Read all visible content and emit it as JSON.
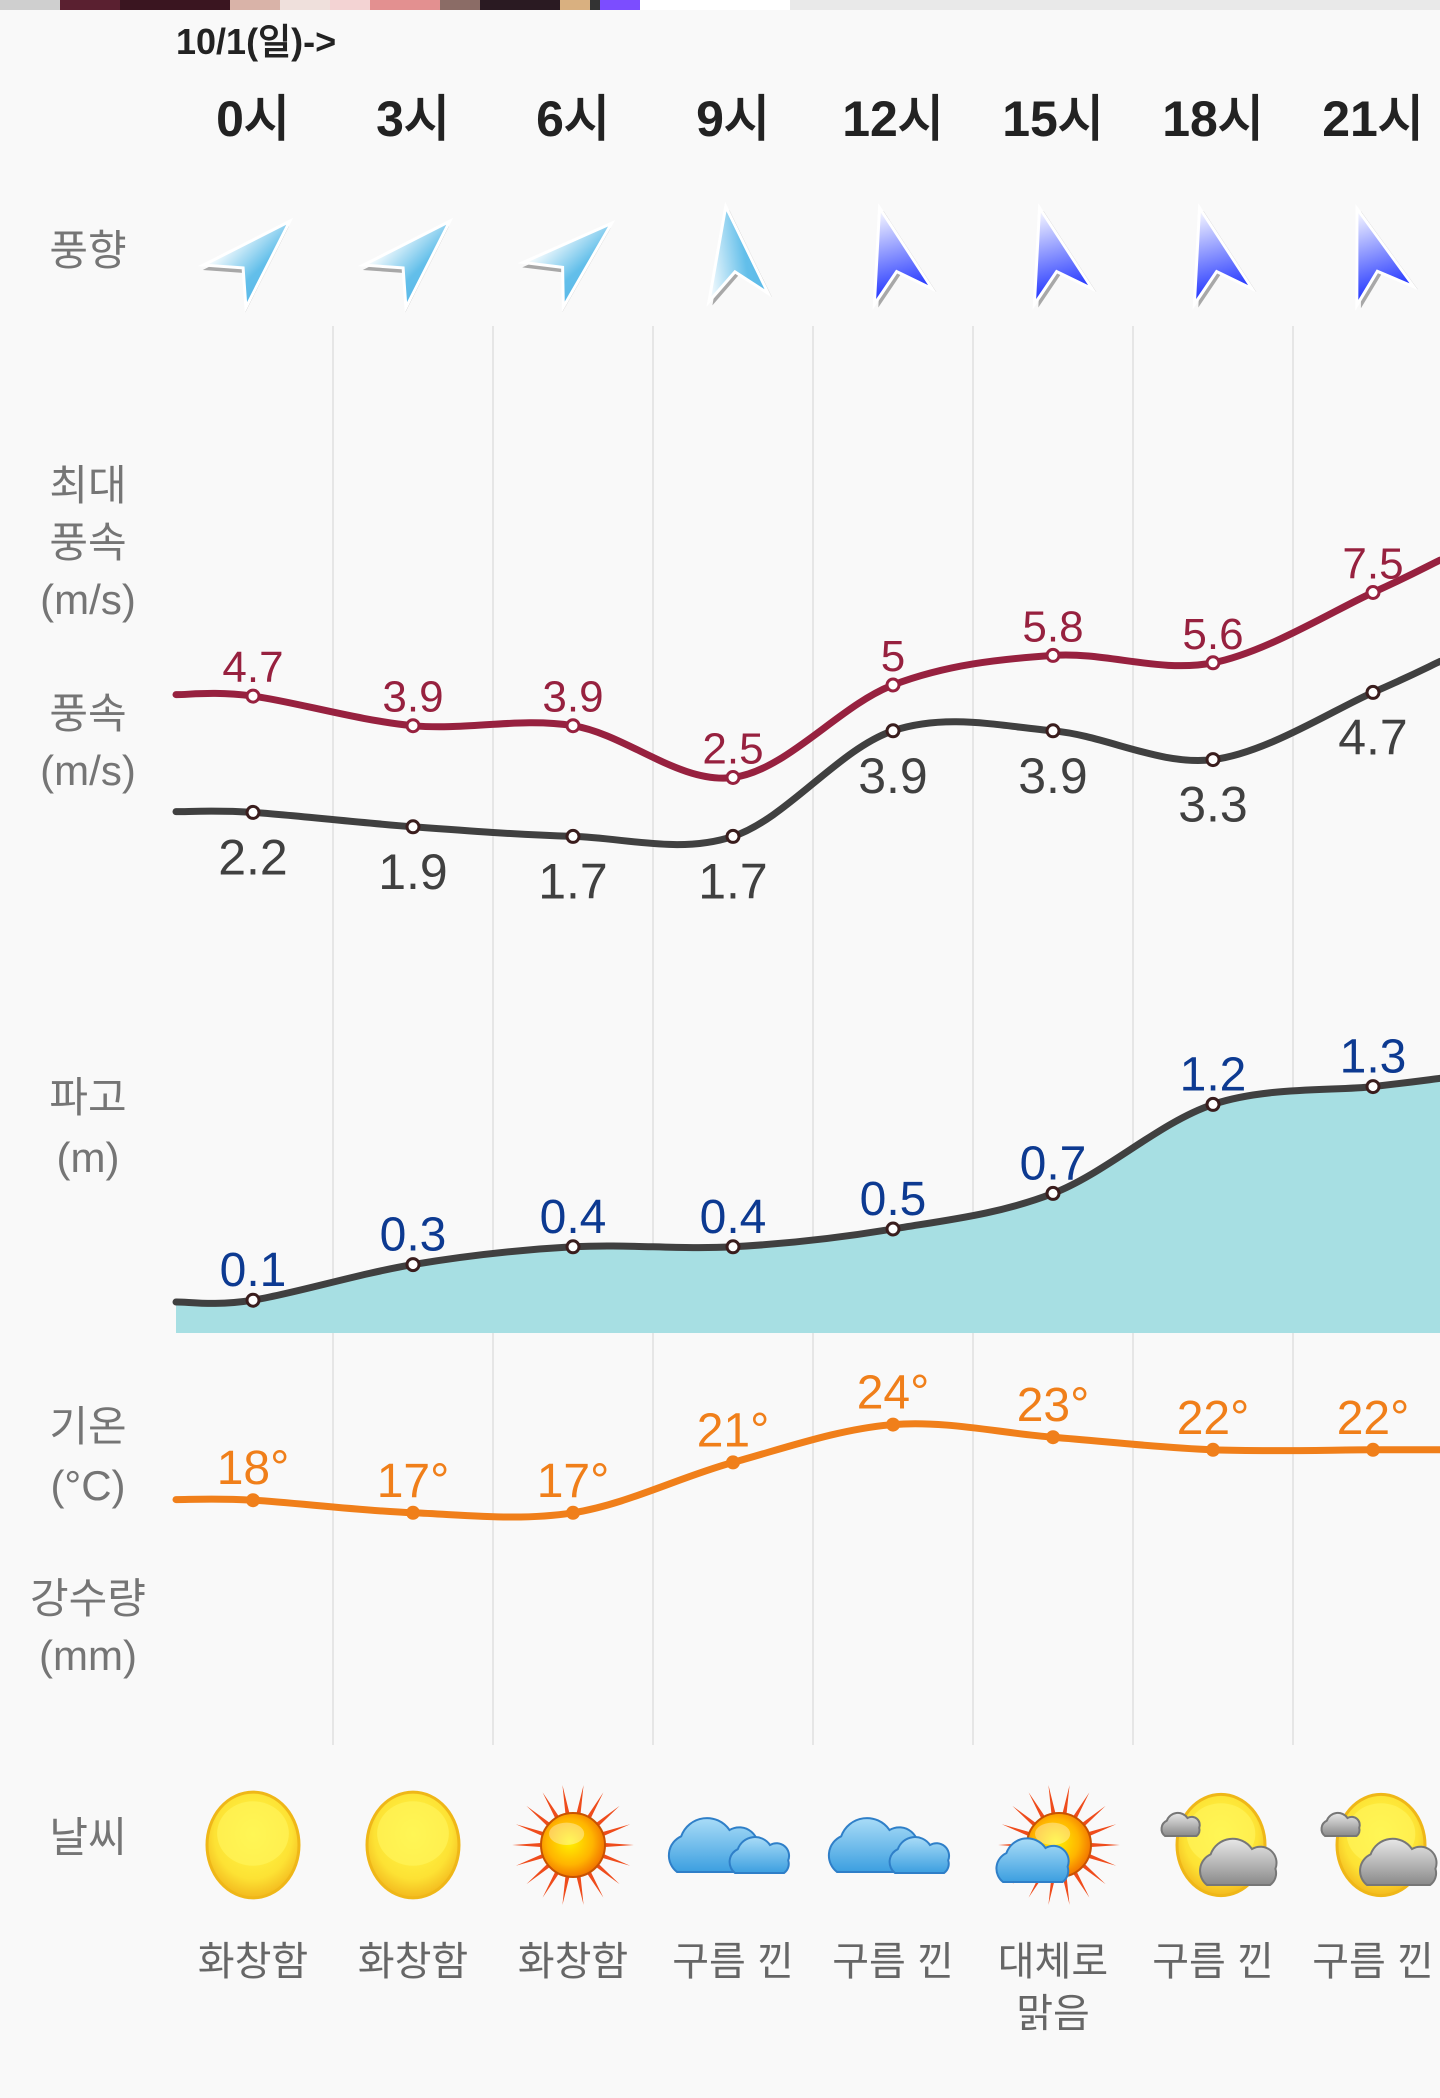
{
  "date_label": "10/1(일)->",
  "hours": [
    "0시",
    "3시",
    "6시",
    "9시",
    "12시",
    "15시",
    "18시",
    "21시"
  ],
  "row_labels": {
    "wind_direction": "풍향",
    "max_wind": [
      "최대",
      "풍속",
      "(m/s)"
    ],
    "wind_speed": [
      "풍속",
      "(m/s)"
    ],
    "wave_height": [
      "파고",
      "(m)"
    ],
    "temperature": [
      "기온",
      "(°C)"
    ],
    "precipitation": [
      "강수량",
      "(mm)"
    ],
    "weather": "날씨"
  },
  "colors": {
    "max_wind": "#97213f",
    "wind": "#404040",
    "wave_line": "#404040",
    "wave_fill": "#a7dfe3",
    "wave_label": "#0d3a91",
    "temperature": "#f07f1a",
    "row_label": "#757575",
    "grid": "#e6e6e6"
  },
  "wind_direction": [
    {
      "icon": "arrow-northeast-light-icon",
      "angle": 45,
      "style": "light"
    },
    {
      "icon": "arrow-northeast-light-icon",
      "angle": 45,
      "style": "light"
    },
    {
      "icon": "arrow-northeast-light-icon",
      "angle": 48,
      "style": "light"
    },
    {
      "icon": "arrow-north-light-icon",
      "angle": -8,
      "style": "light"
    },
    {
      "icon": "arrow-north-dark-icon",
      "angle": -15,
      "style": "dark"
    },
    {
      "icon": "arrow-north-dark-icon",
      "angle": -15,
      "style": "dark"
    },
    {
      "icon": "arrow-north-dark-icon",
      "angle": -15,
      "style": "dark"
    },
    {
      "icon": "arrow-north-dark-icon",
      "angle": -18,
      "style": "dark"
    }
  ],
  "chart_data": [
    {
      "type": "line",
      "title": "최대 풍속 (m/s)",
      "x": [
        "0시",
        "3시",
        "6시",
        "9시",
        "12시",
        "15시",
        "18시",
        "21시"
      ],
      "values": [
        4.7,
        3.9,
        3.9,
        2.5,
        5,
        5.8,
        5.6,
        7.5
      ],
      "labels": [
        "4.7",
        "3.9",
        "3.9",
        "2.5",
        "5",
        "5.8",
        "5.6",
        "7.5"
      ]
    },
    {
      "type": "line",
      "title": "풍속 (m/s)",
      "x": [
        "0시",
        "3시",
        "6시",
        "9시",
        "12시",
        "15시",
        "18시",
        "21시"
      ],
      "values": [
        2.2,
        1.9,
        1.7,
        1.7,
        3.9,
        3.9,
        3.3,
        4.7
      ],
      "labels": [
        "2.2",
        "1.9",
        "1.7",
        "1.7",
        "3.9",
        "3.9",
        "3.3",
        "4.7"
      ]
    },
    {
      "type": "area",
      "title": "파고 (m)",
      "x": [
        "0시",
        "3시",
        "6시",
        "9시",
        "12시",
        "15시",
        "18시",
        "21시"
      ],
      "values": [
        0.1,
        0.3,
        0.4,
        0.4,
        0.5,
        0.7,
        1.2,
        1.3
      ],
      "labels": [
        "0.1",
        "0.3",
        "0.4",
        "0.4",
        "0.5",
        "0.7",
        "1.2",
        "1.3"
      ]
    },
    {
      "type": "line",
      "title": "기온 (°C)",
      "x": [
        "0시",
        "3시",
        "6시",
        "9시",
        "12시",
        "15시",
        "18시",
        "21시"
      ],
      "values": [
        18,
        17,
        17,
        21,
        24,
        23,
        22,
        22
      ],
      "labels": [
        "18°",
        "17°",
        "17°",
        "21°",
        "24°",
        "23°",
        "22°",
        "22°"
      ]
    }
  ],
  "weather": [
    {
      "icon": "sun-icon",
      "text": [
        "화창함"
      ]
    },
    {
      "icon": "sun-icon",
      "text": [
        "화창함"
      ]
    },
    {
      "icon": "sun-rays-icon",
      "text": [
        "화창함"
      ]
    },
    {
      "icon": "clouds-icon",
      "text": [
        "구름 낀"
      ]
    },
    {
      "icon": "clouds-icon",
      "text": [
        "구름 낀"
      ]
    },
    {
      "icon": "sun-cloud-icon",
      "text": [
        "대체로",
        "맑음"
      ]
    },
    {
      "icon": "moon-cloud-icon",
      "text": [
        "구름 낀"
      ]
    },
    {
      "icon": "moon-cloud-icon",
      "text": [
        "구름 낀"
      ]
    }
  ]
}
